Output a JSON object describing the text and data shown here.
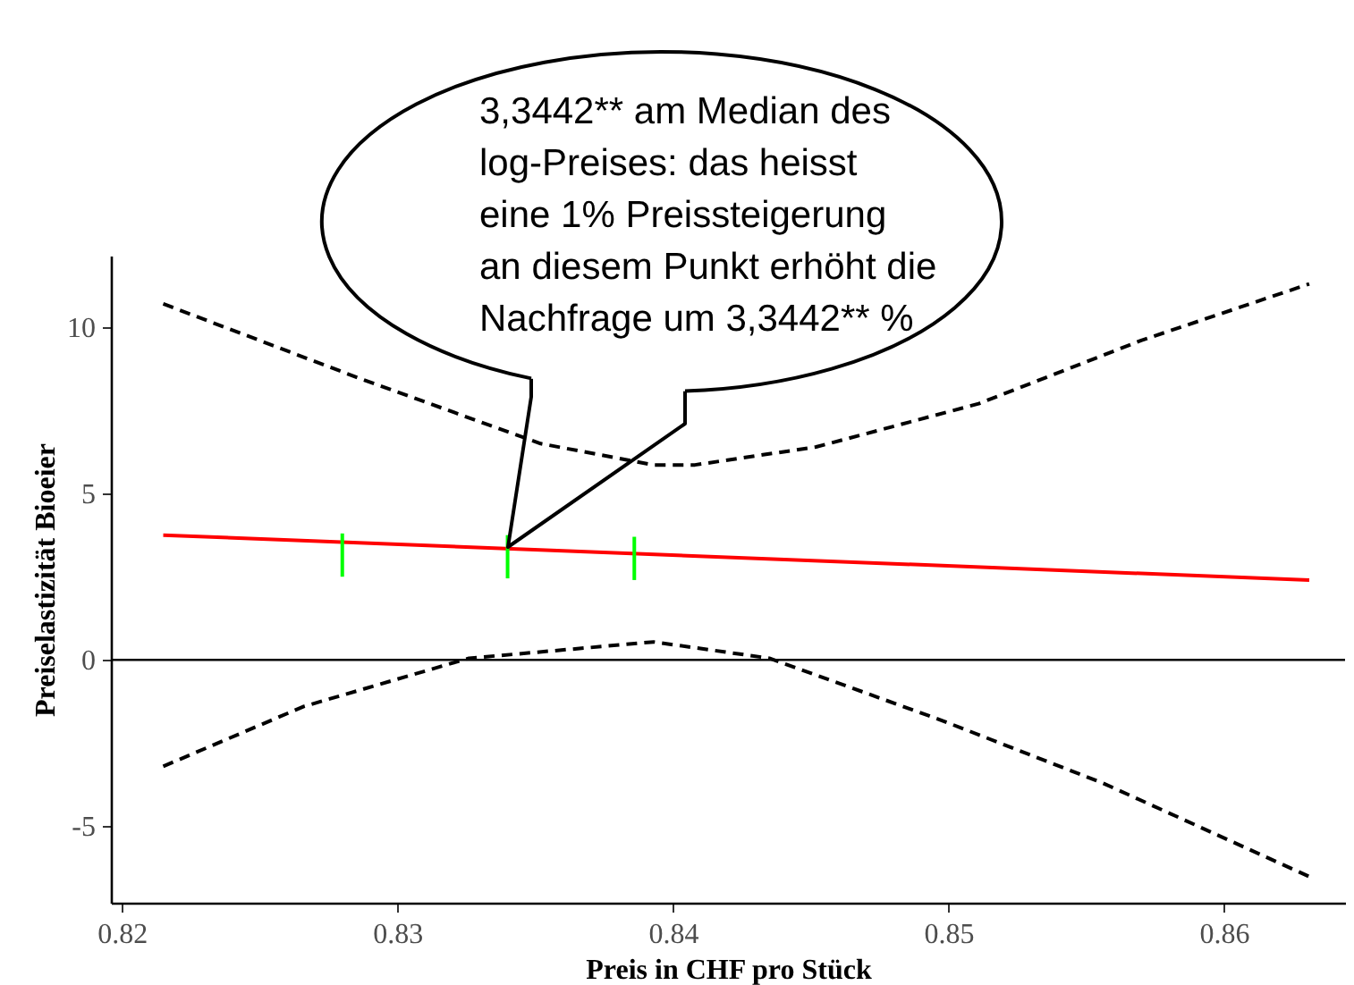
{
  "chart_data": {
    "type": "line",
    "xlabel": "Preis in CHF pro Stück",
    "ylabel": "Preiselastizität Bioeier",
    "xlim": [
      0.8196,
      0.8644
    ],
    "ylim": [
      -7.3,
      12.15
    ],
    "xticks": [
      0.82,
      0.83,
      0.84,
      0.85,
      0.86
    ],
    "yticks": [
      -5,
      0,
      5,
      10
    ],
    "grid": false,
    "ref_lines": [
      {
        "axis": "y",
        "value": 0,
        "color": "#000000"
      }
    ],
    "annotations": [
      "3,3442** am Median des\nlog-Preises: das heisst\neine 1% Preissteigerung\nan diesem Punkt erhöht die\nNachfrage um 3,3442** %"
    ],
    "series": [
      {
        "color": "#ff0000",
        "line_style": "solid",
        "x": [
          0.8215,
          0.8631
        ],
        "values": [
          3.75,
          2.4
        ]
      },
      {
        "color": "#000000",
        "line_style": "dashed",
        "x": [
          0.8215,
          0.8285,
          0.8352,
          0.8393,
          0.8408,
          0.8452,
          0.8511,
          0.857,
          0.8631
        ],
        "values": [
          10.7,
          8.5,
          6.5,
          5.86,
          5.86,
          6.4,
          7.7,
          9.6,
          11.3
        ]
      },
      {
        "color": "#000000",
        "line_style": "dashed",
        "x": [
          0.8215,
          0.8266,
          0.8326,
          0.8393,
          0.8435,
          0.8497,
          0.8556,
          0.8632
        ],
        "values": [
          -3.2,
          -1.4,
          0.05,
          0.54,
          0.05,
          -1.8,
          -3.7,
          -6.55
        ]
      },
      {
        "type": "bar",
        "color": "#00ff00",
        "x": [
          0.828,
          0.834,
          0.8386
        ],
        "base": [
          2.5,
          2.45,
          2.4
        ],
        "values": [
          1.3,
          1.3,
          1.3
        ]
      }
    ]
  }
}
